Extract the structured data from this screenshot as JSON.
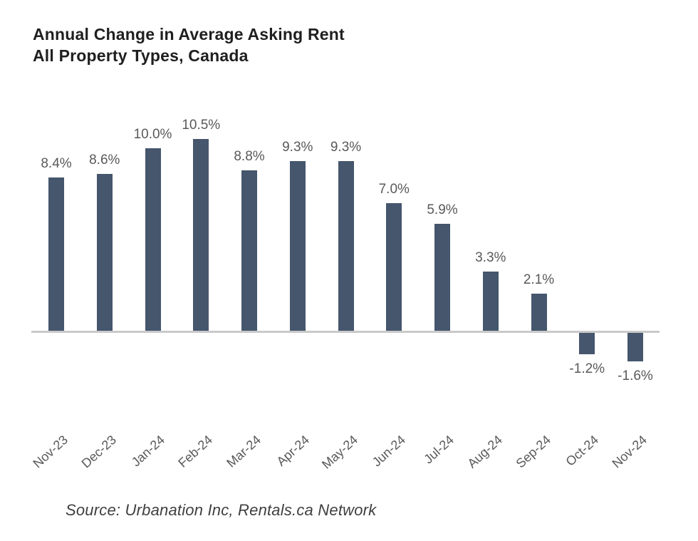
{
  "page": {
    "background": "#ffffff"
  },
  "title": {
    "line1": "Annual Change in Average Asking Rent",
    "line2": "All Property Types, Canada"
  },
  "source": {
    "text": "Source: Urbanation Inc, Rentals.ca Network"
  },
  "colors": {
    "bar": "#45566D",
    "axis_line": "#C9C9C9",
    "data_label": "#595959",
    "title_text": "#1F1F1F",
    "source_text": "#3F3F3F"
  },
  "chart_data": {
    "type": "bar",
    "title": "Annual Change in Average Asking Rent",
    "subtitle": "All Property Types, Canada",
    "categories": [
      "Nov-23",
      "Dec-23",
      "Jan-24",
      "Feb-24",
      "Mar-24",
      "Apr-24",
      "May-24",
      "Jun-24",
      "Jul-24",
      "Aug-24",
      "Sep-24",
      "Oct-24",
      "Nov-24"
    ],
    "values": [
      8.4,
      8.6,
      10.0,
      10.5,
      8.8,
      9.3,
      9.3,
      7.0,
      5.9,
      3.3,
      2.1,
      -1.2,
      -1.6
    ],
    "value_labels": [
      "8.4%",
      "8.6%",
      "10.0%",
      "10.5%",
      "8.8%",
      "9.3%",
      "9.3%",
      "7.0%",
      "5.9%",
      "3.3%",
      "2.1%",
      "-1.2%",
      "-1.6%"
    ],
    "xlabel": "",
    "ylabel": "",
    "ylim": [
      -3,
      12
    ],
    "grid": false,
    "legend": false,
    "data_labels_shown": true,
    "x_tick_rotation_deg": -42,
    "bar_color": "#45566D",
    "source": "Source: Urbanation Inc, Rentals.ca Network"
  }
}
